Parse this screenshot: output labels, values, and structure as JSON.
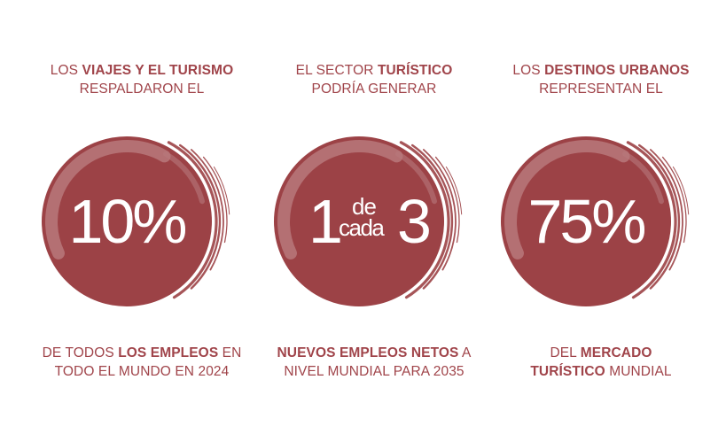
{
  "stats": [
    {
      "top": [
        [
          {
            "t": "LOS ",
            "b": false
          },
          {
            "t": "VIAJES Y EL TURISMO",
            "b": true
          }
        ],
        [
          {
            "t": "RESPALDARON EL",
            "b": false
          }
        ]
      ],
      "value": "10%",
      "bottom": [
        [
          {
            "t": "DE TODOS ",
            "b": false
          },
          {
            "t": "LOS EMPLEOS",
            "b": true
          },
          {
            "t": " EN",
            "b": false
          }
        ],
        [
          {
            "t": "TODO EL MUNDO EN 2024",
            "b": false
          }
        ]
      ]
    },
    {
      "top": [
        [
          {
            "t": "EL SECTOR ",
            "b": false
          },
          {
            "t": "TURÍSTICO",
            "b": true
          }
        ],
        [
          {
            "t": "PODRÍA GENERAR",
            "b": false
          }
        ]
      ],
      "value_parts": {
        "first": "1",
        "de": "de",
        "cada": "cada",
        "last": "3"
      },
      "bottom": [
        [
          {
            "t": "NUEVOS EMPLEOS NETOS",
            "b": true
          },
          {
            "t": " A",
            "b": false
          }
        ],
        [
          {
            "t": "NIVEL MUNDIAL PARA 2035",
            "b": false
          }
        ]
      ]
    },
    {
      "top": [
        [
          {
            "t": "LOS ",
            "b": false
          },
          {
            "t": "DESTINOS URBANOS",
            "b": true
          }
        ],
        [
          {
            "t": "REPRESENTAN EL",
            "b": false
          }
        ]
      ],
      "value": "75%",
      "bottom": [
        [
          {
            "t": "DEL ",
            "b": false
          },
          {
            "t": "MERCADO",
            "b": true
          }
        ],
        [
          {
            "t": "TURÍSTICO",
            "b": true
          },
          {
            "t": " MUNDIAL",
            "b": false
          }
        ]
      ]
    }
  ],
  "colors": {
    "circle": "#9c4246",
    "ring_light": "#b8787b",
    "text": "#a0444a",
    "number": "#ffffff"
  }
}
